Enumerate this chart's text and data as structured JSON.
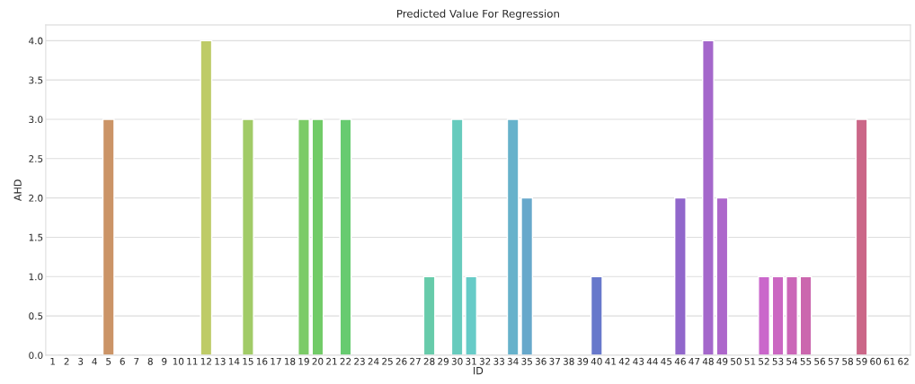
{
  "chart_data": {
    "type": "bar",
    "title": "Predicted Value For Regression",
    "xlabel": "ID",
    "ylabel": "AHD",
    "categories": [
      "1",
      "2",
      "3",
      "4",
      "5",
      "6",
      "7",
      "8",
      "9",
      "10",
      "11",
      "12",
      "13",
      "14",
      "15",
      "16",
      "17",
      "18",
      "19",
      "20",
      "21",
      "22",
      "23",
      "24",
      "25",
      "26",
      "27",
      "28",
      "29",
      "30",
      "31",
      "32",
      "33",
      "34",
      "35",
      "36",
      "37",
      "38",
      "39",
      "40",
      "41",
      "42",
      "43",
      "44",
      "45",
      "46",
      "47",
      "48",
      "49",
      "50",
      "51",
      "52",
      "53",
      "54",
      "55",
      "56",
      "57",
      "58",
      "59",
      "60",
      "61",
      "62"
    ],
    "values": [
      0,
      0,
      0,
      0,
      3,
      0,
      0,
      0,
      0,
      0,
      0,
      4,
      0,
      0,
      3,
      0,
      0,
      0,
      3,
      3,
      0,
      3,
      0,
      0,
      0,
      0,
      0,
      1,
      0,
      3,
      1,
      0,
      0,
      3,
      2,
      0,
      0,
      0,
      0,
      1,
      0,
      0,
      0,
      0,
      0,
      2,
      0,
      4,
      2,
      0,
      0,
      1,
      1,
      1,
      1,
      0,
      0,
      0,
      3,
      0,
      0,
      0
    ],
    "colors": [
      null,
      null,
      null,
      null,
      "#cb9467",
      null,
      null,
      null,
      null,
      null,
      null,
      "#becb67",
      null,
      null,
      "#a1cb67",
      null,
      null,
      null,
      "#7bcb67",
      "#71cb67",
      null,
      "#67cb70",
      null,
      null,
      null,
      null,
      null,
      "#67cbaa",
      null,
      "#67cbbd",
      "#67cbc7",
      null,
      null,
      "#67b2cb",
      "#67a8cb",
      null,
      null,
      null,
      null,
      "#6778cb",
      null,
      null,
      null,
      null,
      null,
      "#9167cb",
      null,
      "#a467cb",
      "#ad67cb",
      null,
      null,
      "#ca67cb",
      "#cb67c2",
      "#cb67b8",
      "#cb67ae",
      null,
      null,
      null,
      "#cb6788",
      null,
      null,
      null
    ],
    "ylim": [
      0,
      4.2
    ],
    "yticks": [
      {
        "value": 0,
        "label": "0.0"
      },
      {
        "value": 0.5,
        "label": "0.5"
      },
      {
        "value": 1,
        "label": "1.0"
      },
      {
        "value": 1.5,
        "label": "1.5"
      },
      {
        "value": 2,
        "label": "2.0"
      },
      {
        "value": 2.5,
        "label": "2.5"
      },
      {
        "value": 3,
        "label": "3.0"
      },
      {
        "value": 3.5,
        "label": "3.5"
      },
      {
        "value": 4,
        "label": "4.0"
      }
    ],
    "grid": "y"
  }
}
